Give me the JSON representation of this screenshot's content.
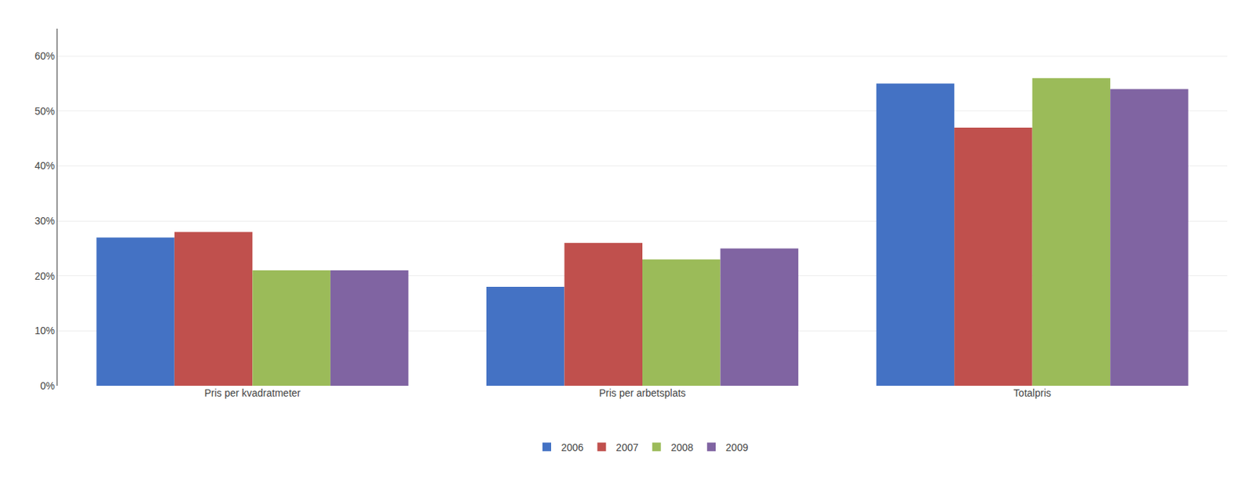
{
  "chart_data": {
    "type": "bar",
    "categories": [
      "Pris per kvadratmeter",
      "Pris per arbetsplats",
      "Totalpris"
    ],
    "series": [
      {
        "name": "2006",
        "color": "#4472c4",
        "values": [
          0.27,
          0.18,
          0.55
        ]
      },
      {
        "name": "2007",
        "color": "#c0504d",
        "values": [
          0.28,
          0.26,
          0.47
        ]
      },
      {
        "name": "2008",
        "color": "#9bbb59",
        "values": [
          0.21,
          0.23,
          0.56
        ]
      },
      {
        "name": "2009",
        "color": "#8064a2",
        "values": [
          0.21,
          0.25,
          0.54
        ]
      }
    ],
    "ylim": [
      0,
      0.65
    ],
    "yticks": [
      {
        "value": 0.0,
        "label": "0%"
      },
      {
        "value": 0.1,
        "label": "10%"
      },
      {
        "value": 0.2,
        "label": "20%"
      },
      {
        "value": 0.3,
        "label": "30%"
      },
      {
        "value": 0.4,
        "label": "40%"
      },
      {
        "value": 0.5,
        "label": "50%"
      },
      {
        "value": 0.6,
        "label": "60%"
      }
    ],
    "grid": true,
    "legend": "bottom"
  }
}
